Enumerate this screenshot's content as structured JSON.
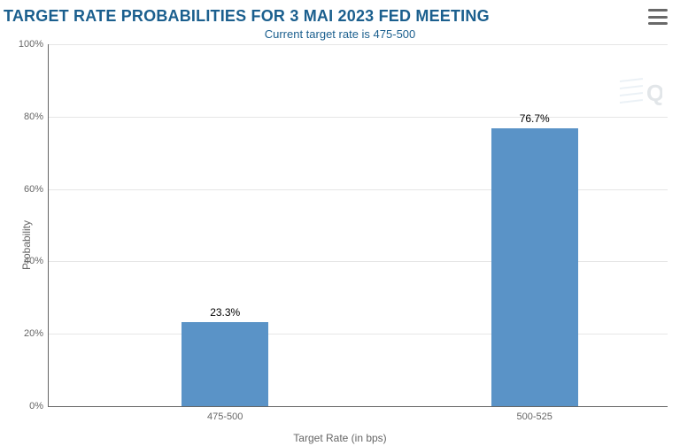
{
  "header": {
    "title": "TARGET RATE PROBABILITIES FOR 3 MAI 2023 FED MEETING",
    "subtitle": "Current target rate is 475-500",
    "title_color": "#1b5f8e",
    "subtitle_color": "#1b5f8e"
  },
  "menu": {
    "bar_color": "#696969"
  },
  "chart": {
    "type": "bar",
    "background_color": "#ffffff",
    "axis_color": "#666666",
    "grid_color": "#e6e6e6",
    "label_color": "#666666",
    "tick_color": "#666666",
    "value_label_color": "#000000",
    "ylabel": "Probability",
    "xlabel": "Target Rate (in bps)",
    "ylim": [
      0,
      100
    ],
    "ytick_step": 20,
    "yticks": [
      {
        "v": 0,
        "label": "0%"
      },
      {
        "v": 20,
        "label": "20%"
      },
      {
        "v": 40,
        "label": "40%"
      },
      {
        "v": 60,
        "label": "60%"
      },
      {
        "v": 80,
        "label": "80%"
      },
      {
        "v": 100,
        "label": "100%"
      }
    ],
    "bars": [
      {
        "category": "475-500",
        "value": 23.3,
        "value_label": "23.3%",
        "center_pct": 28.5,
        "width_pct": 14,
        "color": "#5a93c7"
      },
      {
        "category": "500-525",
        "value": 76.7,
        "value_label": "76.7%",
        "center_pct": 78.5,
        "width_pct": 14,
        "color": "#5a93c7"
      }
    ]
  },
  "watermark": {
    "letter": "Q",
    "letter_color": "#9ba8b3",
    "streak_color": "#b8d0df"
  }
}
